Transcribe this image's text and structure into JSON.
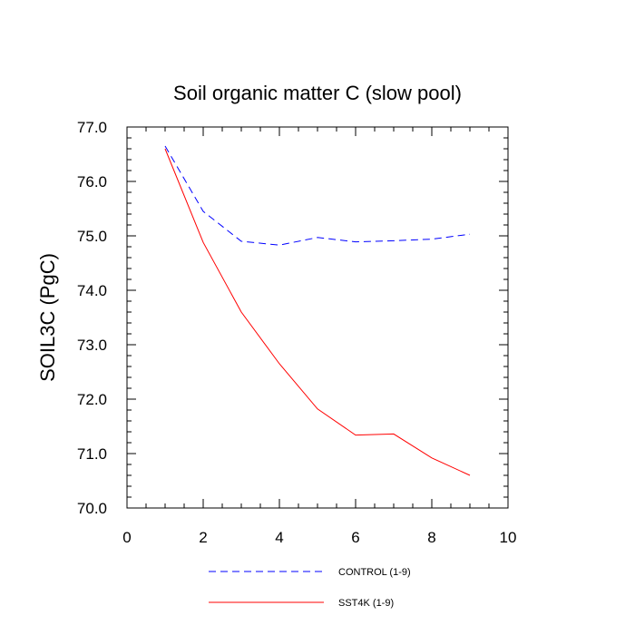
{
  "chart_data": {
    "type": "line",
    "title": "Soil organic matter C (slow pool)",
    "xlabel": "",
    "ylabel": "SOIL3C  (PgC)",
    "xlim": [
      0,
      10
    ],
    "ylim": [
      70.0,
      77.0
    ],
    "x_ticks": [
      "0",
      "2",
      "4",
      "6",
      "8",
      "10"
    ],
    "y_ticks": [
      "70.0",
      "71.0",
      "72.0",
      "73.0",
      "74.0",
      "75.0",
      "76.0",
      "77.0"
    ],
    "x": [
      1,
      2,
      3,
      4,
      5,
      6,
      7,
      8,
      9
    ],
    "series": [
      {
        "name": "CONTROL (1-9)",
        "color": "#0000ff",
        "style": "dashed",
        "values": [
          76.65,
          75.45,
          74.9,
          74.83,
          74.97,
          74.89,
          74.91,
          74.94,
          75.03
        ]
      },
      {
        "name": "SST4K (1-9)",
        "color": "#ff0000",
        "style": "solid",
        "values": [
          76.6,
          74.88,
          73.6,
          72.65,
          71.82,
          71.34,
          71.36,
          70.92,
          70.6
        ]
      }
    ],
    "grid": false,
    "legend_position": "bottom"
  }
}
